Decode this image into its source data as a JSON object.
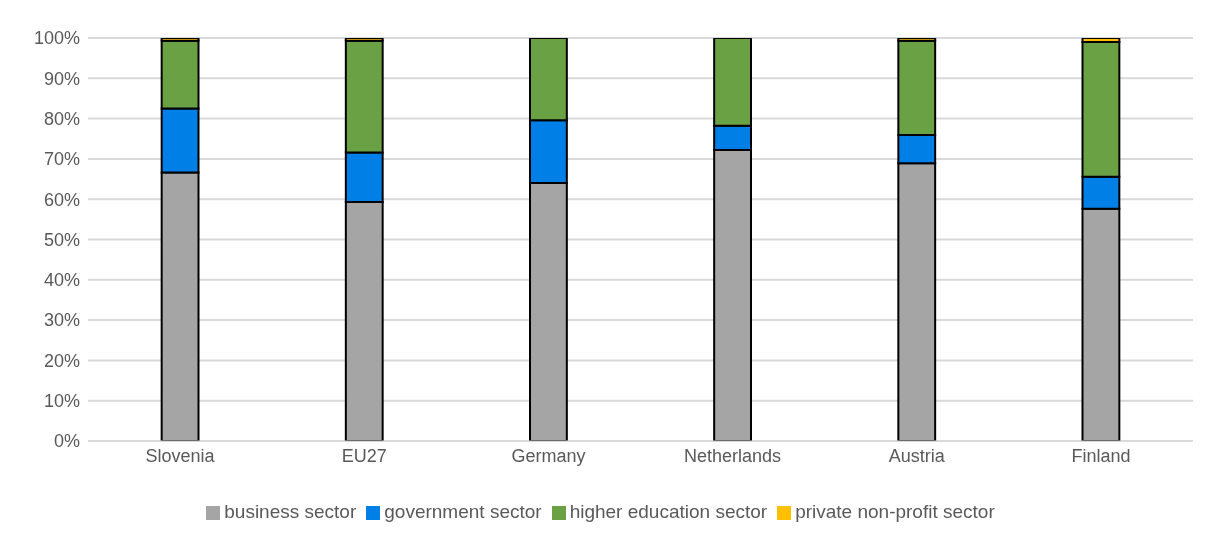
{
  "chart_data": {
    "type": "bar",
    "stacked": true,
    "categories": [
      "Slovenia",
      "EU27",
      "Germany",
      "Netherlands",
      "Austria",
      "Finland"
    ],
    "series": [
      {
        "name": "business sector",
        "color": "#a5a5a5",
        "values": [
          66.6,
          59.3,
          64.0,
          72.2,
          68.9,
          57.6
        ]
      },
      {
        "name": "government sector",
        "color": "#0080e6",
        "values": [
          15.9,
          12.3,
          15.6,
          6.0,
          7.0,
          8.0
        ]
      },
      {
        "name": "higher education sector",
        "color": "#6aa144",
        "values": [
          16.8,
          27.7,
          20.4,
          21.8,
          23.4,
          33.4
        ]
      },
      {
        "name": "private non-profit sector",
        "color": "#ffc000",
        "values": [
          0.7,
          0.7,
          0,
          0,
          0.7,
          1.0
        ]
      }
    ],
    "ylim": [
      0,
      100
    ],
    "yticks": [
      {
        "value": 0,
        "label": "0%"
      },
      {
        "value": 10,
        "label": "10%"
      },
      {
        "value": 20,
        "label": "20%"
      },
      {
        "value": 30,
        "label": "30%"
      },
      {
        "value": 40,
        "label": "40%"
      },
      {
        "value": 50,
        "label": "50%"
      },
      {
        "value": 60,
        "label": "60%"
      },
      {
        "value": 70,
        "label": "70%"
      },
      {
        "value": 80,
        "label": "80%"
      },
      {
        "value": 90,
        "label": "90%"
      },
      {
        "value": 100,
        "label": "100%"
      }
    ],
    "grid": "y",
    "legend": "bottom"
  }
}
